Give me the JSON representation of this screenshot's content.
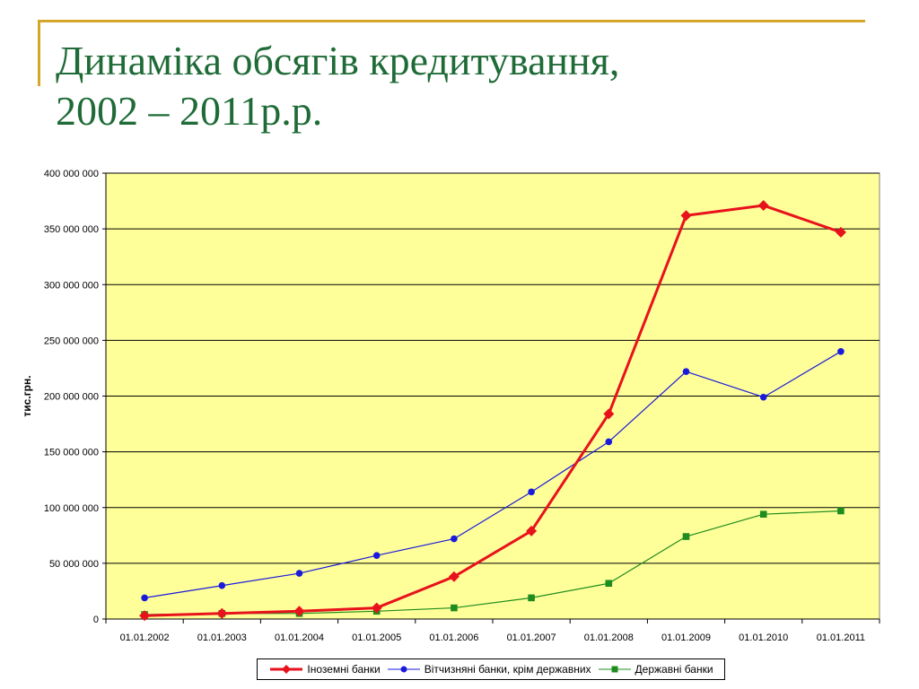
{
  "slide": {
    "title_line1": "Динаміка обсягів кредитування,",
    "title_line2": "2002 – 2011р.р."
  },
  "colors": {
    "title": "#1f6b37",
    "frame": "#d4a62a",
    "plot_background": "#ffff99",
    "gridline": "#000000",
    "foreign": "#e8121c",
    "domestic": "#1a1adc",
    "state": "#1e8c1e"
  },
  "chart_data": {
    "type": "line",
    "title": "",
    "xlabel": "",
    "ylabel": "тис.грн.",
    "ylim": [
      0,
      400000000
    ],
    "y_ticks": [
      0,
      50000000,
      100000000,
      150000000,
      200000000,
      250000000,
      300000000,
      350000000,
      400000000
    ],
    "y_tick_labels": [
      "0",
      "50 000 000",
      "100 000 000",
      "150 000 000",
      "200 000 000",
      "250 000 000",
      "300 000 000",
      "350 000 000",
      "400 000 000"
    ],
    "grid": true,
    "legend_position": "bottom",
    "categories": [
      "01.01.2002",
      "01.01.2003",
      "01.01.2004",
      "01.01.2005",
      "01.01.2006",
      "01.01.2007",
      "01.01.2008",
      "01.01.2009",
      "01.01.2010",
      "01.01.2011"
    ],
    "series": [
      {
        "name": "Іноземні банки",
        "color": "#e8121c",
        "marker": "diamond",
        "values": [
          3000000,
          5000000,
          7000000,
          10000000,
          38000000,
          79000000,
          184000000,
          362000000,
          371000000,
          347000000
        ]
      },
      {
        "name": "Вітчизняні банки, крім державних",
        "color": "#1a1adc",
        "marker": "circle",
        "values": [
          19000000,
          30000000,
          41000000,
          57000000,
          72000000,
          114000000,
          159000000,
          222000000,
          199000000,
          240000000
        ]
      },
      {
        "name": "Державні банки",
        "color": "#1e8c1e",
        "marker": "square",
        "values": [
          4000000,
          5000000,
          5000000,
          7000000,
          10000000,
          19000000,
          32000000,
          74000000,
          94000000,
          97000000
        ]
      }
    ]
  }
}
